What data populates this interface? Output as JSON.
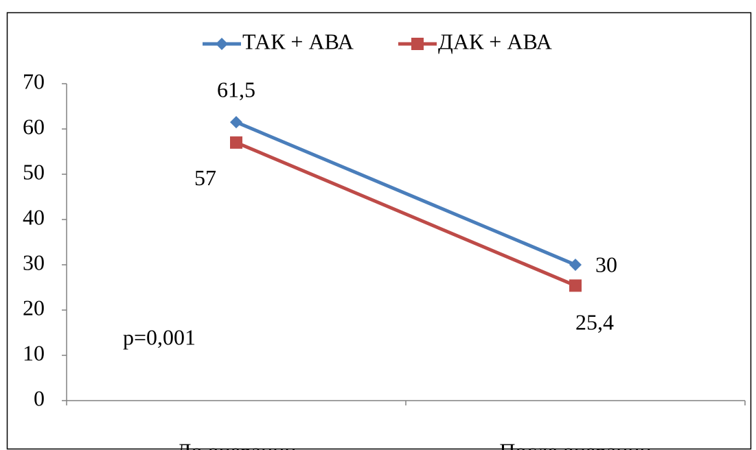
{
  "chart_data": {
    "type": "line",
    "categories": [
      "До операции",
      "После операции"
    ],
    "series": [
      {
        "name": "ТАК + АВА",
        "color": "#4a7ebb",
        "marker": "diamond",
        "values": [
          61.5,
          30
        ],
        "value_labels": [
          "61,5",
          "30"
        ]
      },
      {
        "name": "ДАК + АВА",
        "color": "#be4b48",
        "marker": "square",
        "values": [
          57,
          25.4
        ],
        "value_labels": [
          "57",
          "25,4"
        ]
      }
    ],
    "annotations": [
      "p=0,001"
    ],
    "ylim": [
      0,
      70
    ],
    "yticks": [
      0,
      10,
      20,
      30,
      40,
      50,
      60,
      70
    ],
    "grid": false,
    "legend": "top"
  }
}
